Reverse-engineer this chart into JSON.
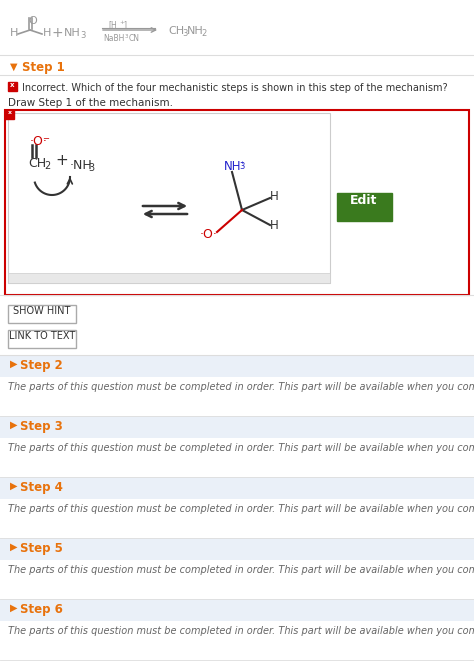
{
  "bg_color": "#ffffff",
  "border_color": "#dddddd",
  "orange_color": "#e8720c",
  "red_color": "#cc0000",
  "green_color": "#3a7a1e",
  "blue_color": "#2222cc",
  "black_color": "#333333",
  "gray_text": "#666666",
  "light_blue_bg": "#eaf0f8",
  "chem_gray": "#999999",
  "step1_header": "Step 1",
  "incorrect_text": "Incorrect. Which of the four mechanistic steps is shown in this step of the mechanism?",
  "draw_text": "Draw Step 1 of the mechanism.",
  "show_hint": "SHOW HINT",
  "link_text": "LINK TO TEXT",
  "steps": [
    "Step 2",
    "Step 3",
    "Step 4",
    "Step 5",
    "Step 6"
  ],
  "step_body": "The parts of this question must be completed in order. This part will be available when you complete the part above."
}
